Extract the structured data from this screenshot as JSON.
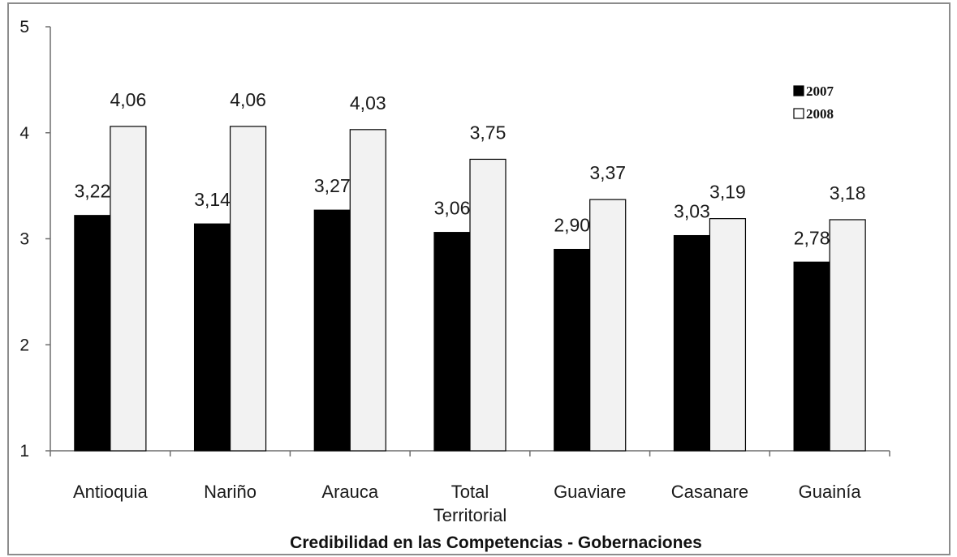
{
  "chart_data": {
    "type": "bar",
    "categories": [
      "Antioquia",
      "Nariño",
      "Arauca",
      "Total Territorial",
      "Guaviare",
      "Casanare",
      "Guainía"
    ],
    "category_lines": [
      [
        "Antioquia"
      ],
      [
        "Nariño"
      ],
      [
        "Arauca"
      ],
      [
        "Total",
        "Territorial"
      ],
      [
        "Guaviare"
      ],
      [
        "Casanare"
      ],
      [
        "Guainía"
      ]
    ],
    "series": [
      {
        "name": "2007",
        "values": [
          3.22,
          3.14,
          3.27,
          3.06,
          2.9,
          3.03,
          2.78
        ],
        "labels": [
          "3,22",
          "3,14",
          "3,27",
          "3,06",
          "2,90",
          "3,03",
          "2,78"
        ],
        "color": "#000000"
      },
      {
        "name": "2008",
        "values": [
          4.06,
          4.06,
          4.03,
          3.75,
          3.37,
          3.19,
          3.18
        ],
        "labels": [
          "4,06",
          "4,06",
          "4,03",
          "3,75",
          "3,37",
          "3,19",
          "3,18"
        ],
        "color": "#f2f2f2"
      }
    ],
    "title": "",
    "xlabel": "Credibilidad en las Competencias - Gobernaciones",
    "ylabel": "",
    "ylim": [
      1,
      5
    ],
    "yticks": [
      1,
      2,
      3,
      4,
      5
    ],
    "grid": false,
    "legend_position": "top-right"
  }
}
